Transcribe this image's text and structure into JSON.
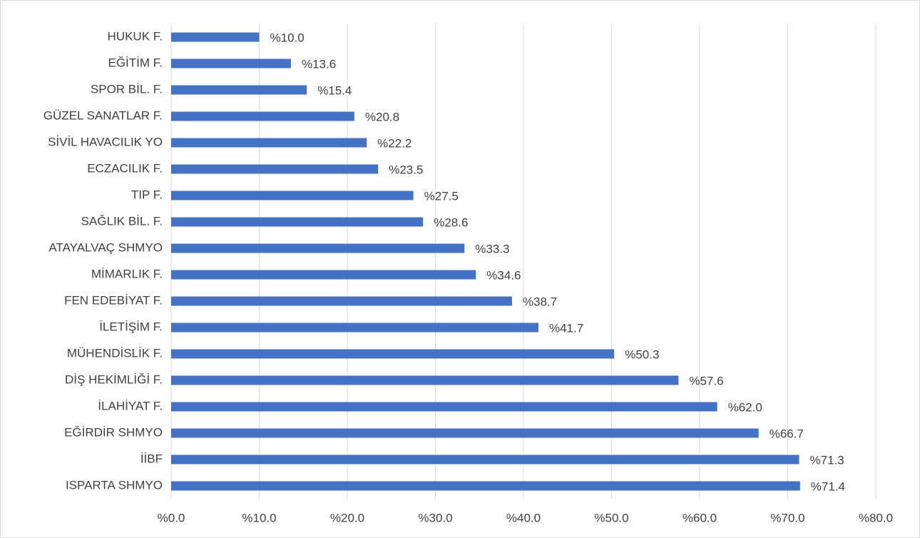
{
  "chart_data": {
    "type": "bar",
    "orientation": "horizontal",
    "categories": [
      "HUKUK F.",
      "EĞİTİM F.",
      "SPOR BİL. F.",
      "GÜZEL SANATLAR F.",
      "SİVİL HAVACILIK YO",
      "ECZACILIK F.",
      "TIP F.",
      "SAĞLIK BİL. F.",
      "ATAYALVAÇ SHMYO",
      "MİMARLIK F.",
      "FEN EDEBİYAT F.",
      "İLETİŞİM F.",
      "MÜHENDİSLİK F.",
      "DİŞ HEKİMLİĞİ F.",
      "İLAHİYAT F.",
      "EĞİRDİR SHMYO",
      "İİBF",
      "ISPARTA SHMYO"
    ],
    "values": [
      10.0,
      13.6,
      15.4,
      20.8,
      22.2,
      23.5,
      27.5,
      28.6,
      33.3,
      34.6,
      38.7,
      41.7,
      50.3,
      57.6,
      62.0,
      66.7,
      71.3,
      71.4
    ],
    "value_labels": [
      "%10.0",
      "%13.6",
      "%15.4",
      "%20.8",
      "%22.2",
      "%23.5",
      "%27.5",
      "%28.6",
      "%33.3",
      "%34.6",
      "%38.7",
      "%41.7",
      "%50.3",
      "%57.6",
      "%62.0",
      "%66.7",
      "%71.3",
      "%71.4"
    ],
    "color": "#4472c4",
    "xlim": [
      0,
      80
    ],
    "xticks": [
      {
        "value": 0,
        "label": "%0.0"
      },
      {
        "value": 10,
        "label": "%10.0"
      },
      {
        "value": 20,
        "label": "%20.0"
      },
      {
        "value": 30,
        "label": "%30.0"
      },
      {
        "value": 40,
        "label": "%40.0"
      },
      {
        "value": 50,
        "label": "%50.0"
      },
      {
        "value": 60,
        "label": "%60.0"
      },
      {
        "value": 70,
        "label": "%70.0"
      },
      {
        "value": 80,
        "label": "%80.0"
      }
    ],
    "grid": true
  }
}
